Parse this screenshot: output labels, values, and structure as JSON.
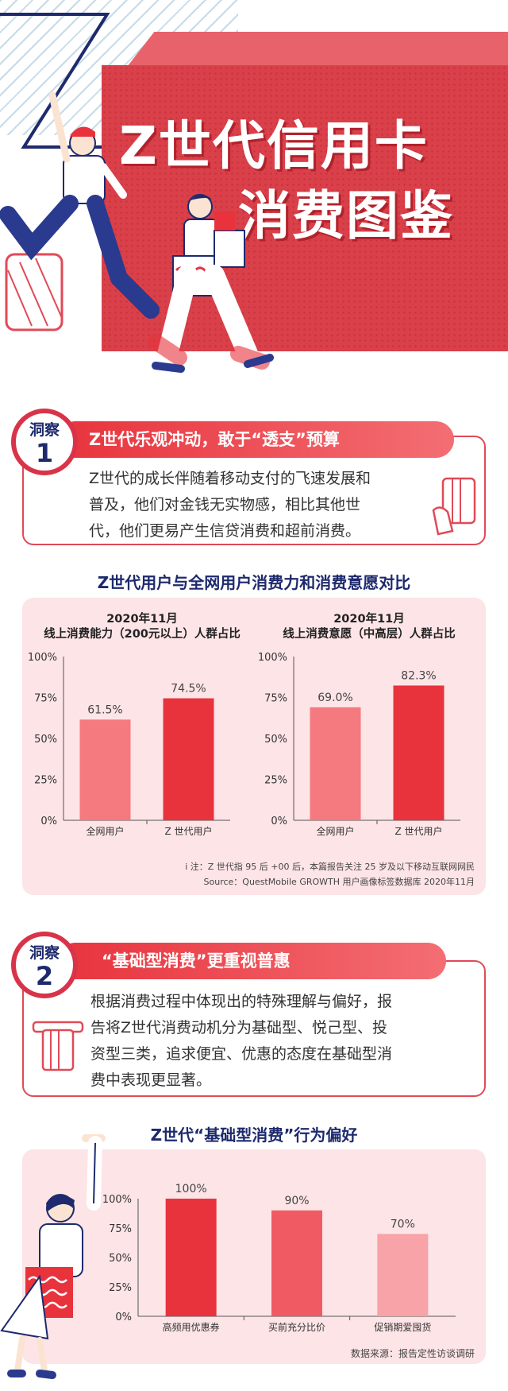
{
  "hero": {
    "title_line1": "Z世代信用卡",
    "title_line2": "消费图鉴"
  },
  "insight1": {
    "label": "洞察",
    "number": "1",
    "heading": "Z世代乐观冲动，敢于“透支”预算",
    "body_lines": [
      "Z世代的成长伴随着移动支付的飞速发展和",
      "普及，他们对金钱无实物感，相比其他世",
      "代，他们更易产生信贷消费和超前消费。"
    ]
  },
  "section1_title": "Z世代用户与全网用户消费力和消费意愿对比",
  "chart_data": [
    {
      "type": "bar",
      "title": "2020年11月\n线上消费能力（200元以上）人群占比",
      "title_lines": [
        "2020年11月",
        "线上消费能力（200元以上）人群占比"
      ],
      "categories": [
        "全网用户",
        "Z 世代用户"
      ],
      "values": [
        61.5,
        74.5
      ],
      "value_labels": [
        "61.5%",
        "74.5%"
      ],
      "yticks": [
        "0%",
        "25%",
        "50%",
        "75%",
        "100%"
      ],
      "ylim": [
        0,
        100
      ],
      "colors": [
        "#f47a80",
        "#e8333d"
      ]
    },
    {
      "type": "bar",
      "title": "2020年11月\n线上消费意愿（中高层）人群占比",
      "title_lines": [
        "2020年11月",
        "线上消费意愿（中高层）人群占比"
      ],
      "categories": [
        "全网用户",
        "Z 世代用户"
      ],
      "values": [
        69.0,
        82.3
      ],
      "value_labels": [
        "69.0%",
        "82.3%"
      ],
      "yticks": [
        "0%",
        "25%",
        "50%",
        "75%",
        "100%"
      ],
      "ylim": [
        0,
        100
      ],
      "colors": [
        "#f47a80",
        "#e8333d"
      ]
    },
    {
      "type": "bar",
      "title": "",
      "categories": [
        "高频用优惠券",
        "买前充分比价",
        "促销期爱囤货"
      ],
      "values": [
        100,
        90,
        70
      ],
      "value_labels": [
        "100%",
        "90%",
        "70%"
      ],
      "yticks": [
        "0%",
        "25%",
        "50%",
        "75%",
        "100%"
      ],
      "ylim": [
        0,
        100
      ],
      "colors": [
        "#e8333d",
        "#f05a62",
        "#f7a3a8"
      ]
    }
  ],
  "chart1_notes": {
    "note": "i 注：Z 世代指 95 后 +00 后，本篇报告关注 25 岁及以下移动互联网网民",
    "source": "Source：QuestMobile GROWTH 用户画像标签数据库 2020年11月"
  },
  "insight2": {
    "label": "洞察",
    "number": "2",
    "heading": "“基础型消费”更重视普惠",
    "body_lines": [
      "根据消费过程中体现出的特殊理解与偏好，报",
      "告将Z世代消费动机分为基础型、悦己型、投",
      "资型三类，追求便宜、优惠的态度在基础型消",
      "费中表现更显著。"
    ]
  },
  "section2_title": "Z世代“基础型消费”行为偏好",
  "chart2_source": "数据来源：报告定性访谈调研",
  "colors": {
    "accent_red": "#e8333d",
    "navy": "#1e2a6d",
    "panel_pink": "#fde4e7"
  }
}
